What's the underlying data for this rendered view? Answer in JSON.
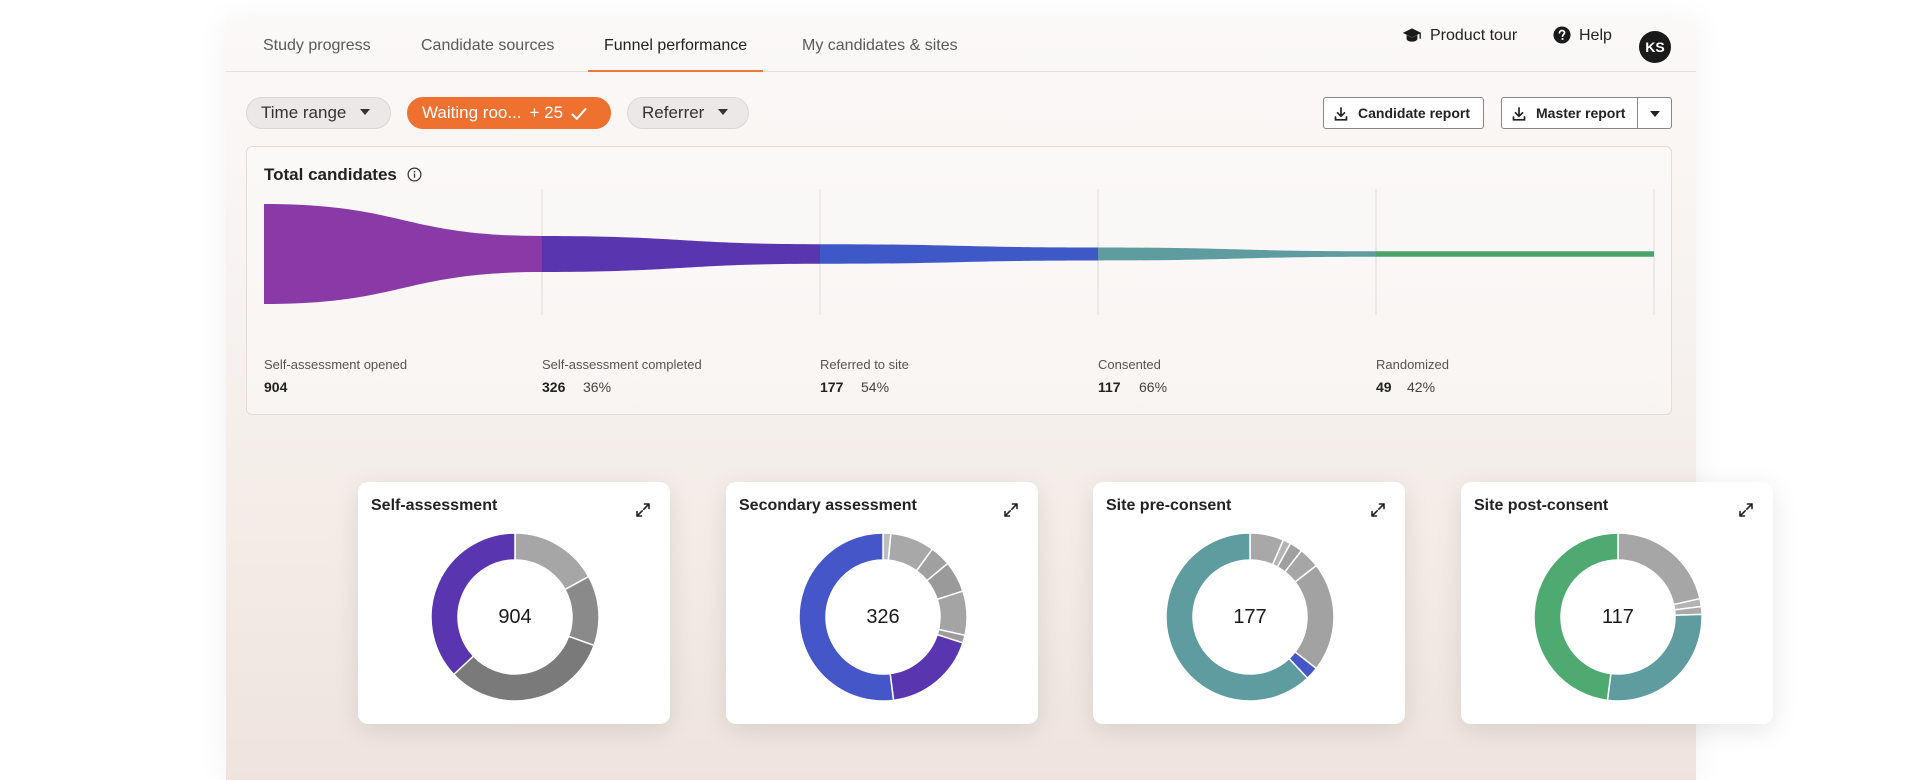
{
  "tabs": [
    {
      "label": "Study progress"
    },
    {
      "label": "Candidate sources"
    },
    {
      "label": "Funnel performance"
    },
    {
      "label": "My candidates & sites"
    }
  ],
  "header": {
    "product_tour": "Product tour",
    "help": "Help",
    "avatar_initials": "KS"
  },
  "filters": {
    "time_range": "Time range",
    "waiting_room": "Waiting roo...",
    "waiting_room_extra": "+ 25",
    "referrer": "Referrer"
  },
  "actions": {
    "candidate_report": "Candidate report",
    "master_report": "Master report"
  },
  "funnel": {
    "title": "Total candidates",
    "stages": [
      {
        "label": "Self-assessment opened",
        "count": "904",
        "pct": "",
        "color": "#8a3aa6"
      },
      {
        "label": "Self-assessment completed",
        "count": "326",
        "pct": "36%",
        "color": "#5a35b0"
      },
      {
        "label": "Referred to site",
        "count": "177",
        "pct": "54%",
        "color": "#3f58c8"
      },
      {
        "label": "Consented",
        "count": "117",
        "pct": "66%",
        "color": "#5e9ca0"
      },
      {
        "label": "Randomized",
        "count": "49",
        "pct": "42%",
        "color": "#4aa36a"
      }
    ]
  },
  "donuts": [
    {
      "title": "Self-assessment",
      "total": "904",
      "segments": [
        {
          "fraction": 0.17,
          "color": "#a6a6a6"
        },
        {
          "fraction": 0.135,
          "color": "#8a8a8a"
        },
        {
          "fraction": 0.325,
          "color": "#7a7a7a"
        },
        {
          "fraction": 0.37,
          "color": "#5a35b0"
        }
      ]
    },
    {
      "title": "Secondary assessment",
      "total": "326",
      "segments": [
        {
          "fraction": 0.015,
          "color": "#bdbdbd"
        },
        {
          "fraction": 0.085,
          "color": "#a8a8a8"
        },
        {
          "fraction": 0.04,
          "color": "#a0a0a0"
        },
        {
          "fraction": 0.06,
          "color": "#9a9a9a"
        },
        {
          "fraction": 0.085,
          "color": "#a4a4a4"
        },
        {
          "fraction": 0.015,
          "color": "#9c9c9c"
        },
        {
          "fraction": 0.18,
          "color": "#5a35b0"
        },
        {
          "fraction": 0.52,
          "color": "#4456c8"
        }
      ]
    },
    {
      "title": "Site pre-consent",
      "total": "177",
      "segments": [
        {
          "fraction": 0.065,
          "color": "#a8a8a8"
        },
        {
          "fraction": 0.015,
          "color": "#b4b4b4"
        },
        {
          "fraction": 0.025,
          "color": "#a0a0a0"
        },
        {
          "fraction": 0.04,
          "color": "#a6a6a6"
        },
        {
          "fraction": 0.21,
          "color": "#a2a2a2"
        },
        {
          "fraction": 0.025,
          "color": "#4456c8"
        },
        {
          "fraction": 0.62,
          "color": "#5e9ca0"
        }
      ]
    },
    {
      "title": "Site post-consent",
      "total": "117",
      "segments": [
        {
          "fraction": 0.215,
          "color": "#a6a6a6"
        },
        {
          "fraction": 0.015,
          "color": "#b4b4b4"
        },
        {
          "fraction": 0.015,
          "color": "#aaaaaa"
        },
        {
          "fraction": 0.275,
          "color": "#5e9ca0"
        },
        {
          "fraction": 0.48,
          "color": "#4faa72"
        }
      ]
    }
  ],
  "colors": {
    "accent": "#ef7130"
  }
}
